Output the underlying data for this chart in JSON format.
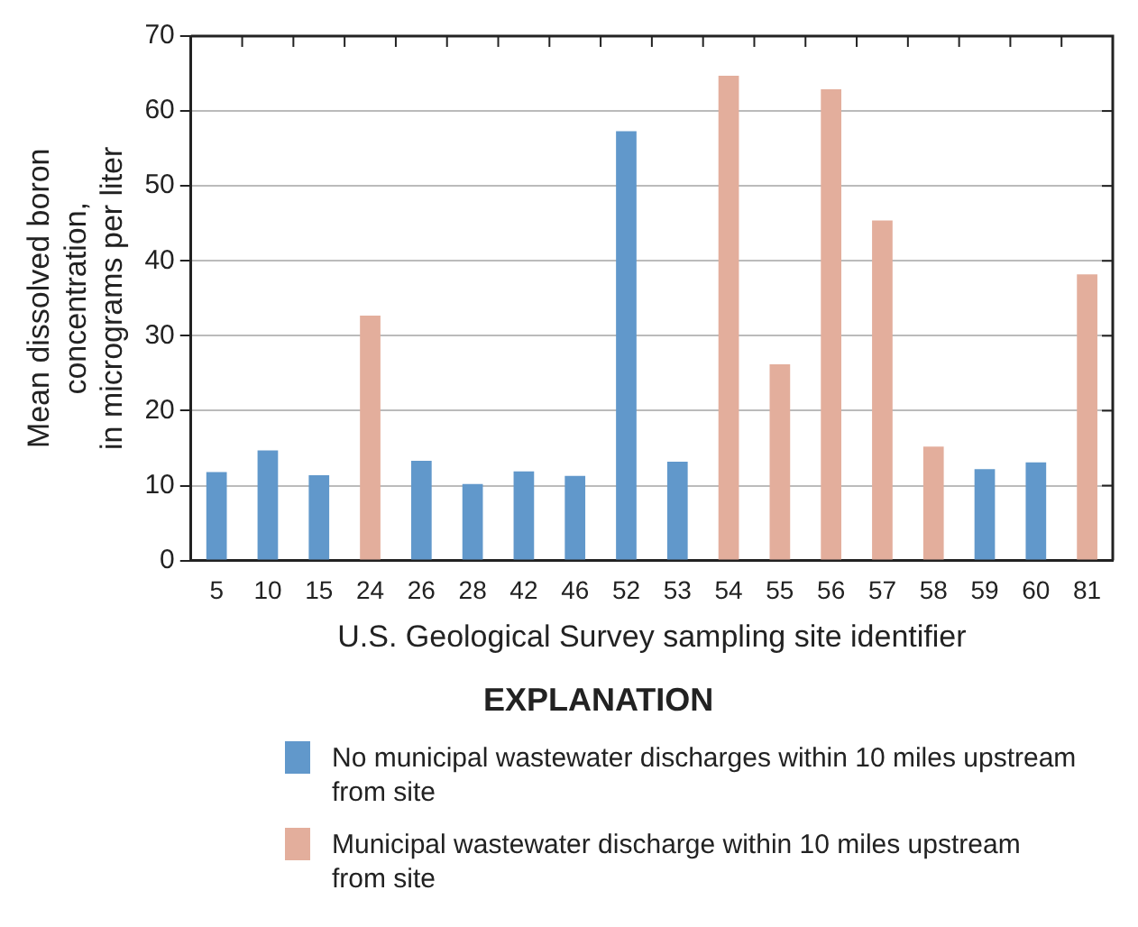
{
  "chart_data": {
    "type": "bar",
    "xlabel": "U.S. Geological Survey sampling site identifier",
    "ylabel": "Mean dissolved boron\nconcentration,\nin micrograms per liter",
    "legend_title": "EXPLANATION",
    "categories": [
      "5",
      "10",
      "15",
      "24",
      "26",
      "28",
      "42",
      "46",
      "52",
      "53",
      "54",
      "55",
      "56",
      "57",
      "58",
      "59",
      "60",
      "81"
    ],
    "series": [
      {
        "name": "No municipal wastewater discharges within 10 miles upstream from site",
        "color": "#6198cb",
        "values": [
          11.8,
          14.7,
          11.4,
          null,
          13.3,
          10.2,
          11.9,
          11.3,
          57.3,
          13.2,
          null,
          null,
          null,
          null,
          null,
          12.2,
          13.1,
          null
        ]
      },
      {
        "name": "Municipal wastewater discharge within 10 miles upstream from site",
        "color": "#e3ae9c",
        "values": [
          null,
          null,
          null,
          32.7,
          null,
          null,
          null,
          null,
          null,
          null,
          64.7,
          26.2,
          62.9,
          45.4,
          15.2,
          null,
          null,
          38.2
        ]
      }
    ],
    "ylim": [
      0,
      70
    ],
    "yticks": [
      0,
      10,
      20,
      30,
      40,
      50,
      60,
      70
    ],
    "grid": "y",
    "legend": "bottom"
  }
}
